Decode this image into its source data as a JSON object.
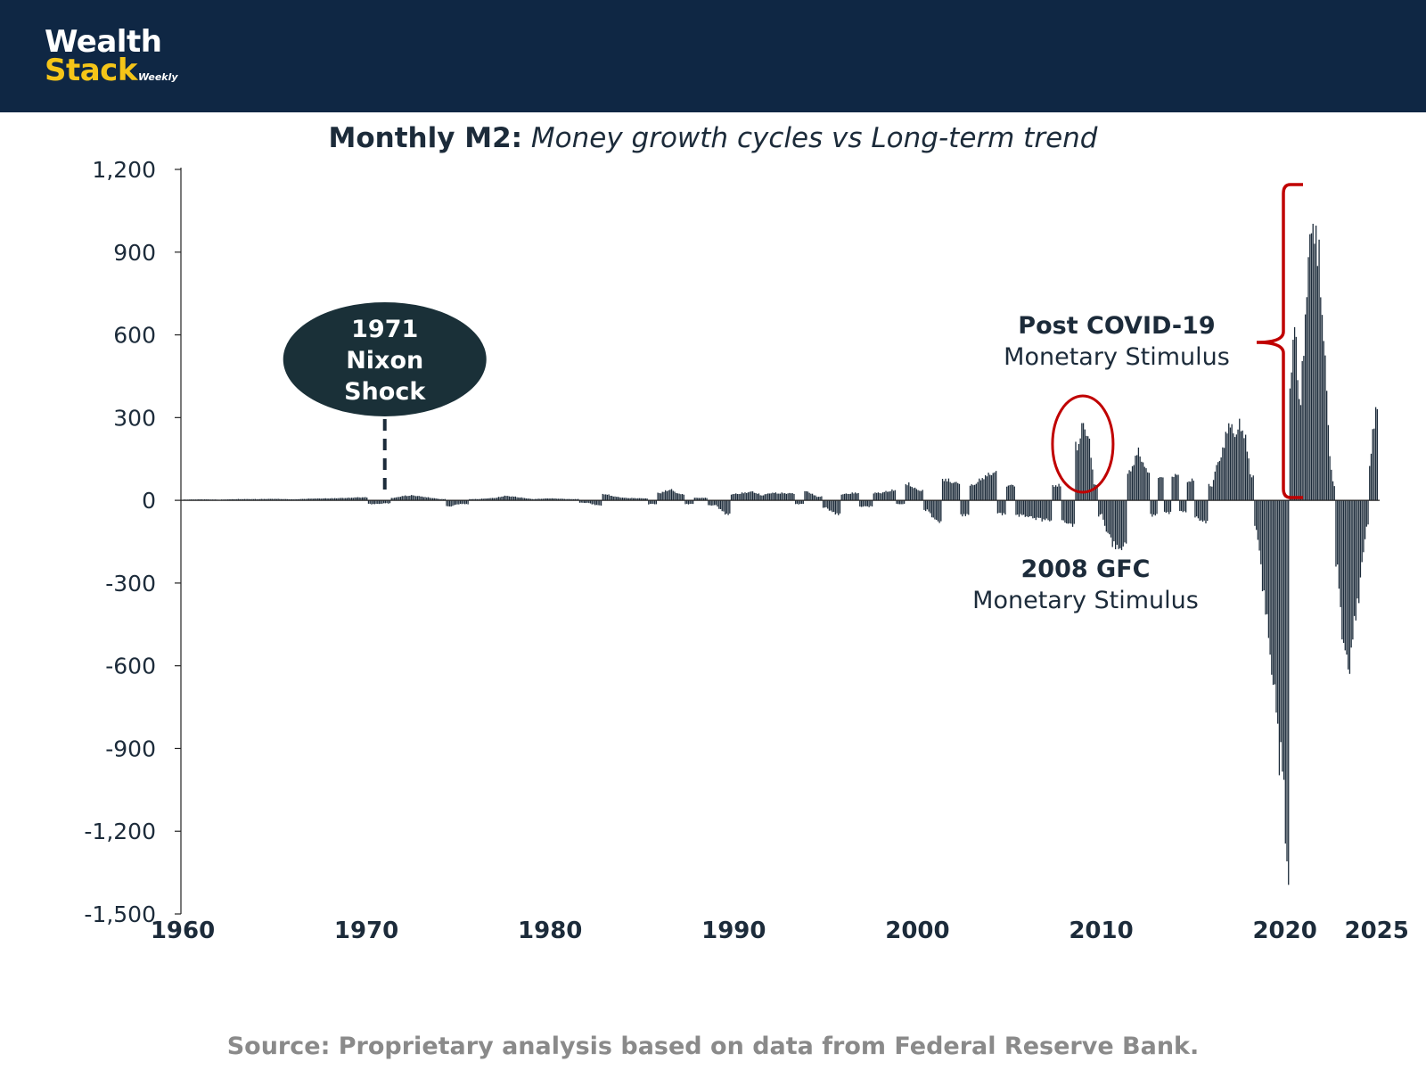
{
  "brand": {
    "line1": "Wealth",
    "line2": "Stack",
    "sub": "Weekly"
  },
  "source": "Source: Proprietary analysis based on data from Federal Reserve Bank.",
  "colors": {
    "header": "#0f2744",
    "bar": "#1c2b3a",
    "annotation_red": "#c00000",
    "logo_yellow": "#f5c518",
    "source_grey": "#8a8a8a"
  },
  "chart_data": {
    "type": "bar",
    "title_bold": "Monthly M2:",
    "title_italic": "Money growth cycles vs Long-term trend",
    "xlabel": "",
    "ylabel": "",
    "xlim": [
      1960,
      2025.5
    ],
    "ylim": [
      -1500,
      1200
    ],
    "yticks": [
      1200,
      900,
      600,
      300,
      0,
      -300,
      -600,
      -900,
      -1200,
      -1500
    ],
    "ytick_labels": [
      "1,200",
      "900",
      "600",
      "300",
      "0",
      "-300",
      "-600",
      "-900",
      "-1,200",
      "-1,500"
    ],
    "xticks": [
      1960,
      1970,
      1980,
      1990,
      2000,
      2010,
      2020,
      2025
    ],
    "xtick_labels": [
      "1960",
      "1970",
      "1980",
      "1990",
      "2000",
      "2010",
      "2020",
      "2025"
    ],
    "grid": false,
    "series": [
      {
        "name": "Monthly M2 deviation",
        "points": [
          [
            1960.0,
            3
          ],
          [
            1961.0,
            4
          ],
          [
            1962.0,
            3
          ],
          [
            1963.0,
            5
          ],
          [
            1964.0,
            5
          ],
          [
            1965.0,
            6
          ],
          [
            1966.0,
            4
          ],
          [
            1967.0,
            7
          ],
          [
            1968.0,
            8
          ],
          [
            1969.0,
            10
          ],
          [
            1969.5,
            12
          ],
          [
            1970.5,
            -15
          ],
          [
            1971.0,
            -12
          ],
          [
            1971.5,
            10
          ],
          [
            1972.0,
            18
          ],
          [
            1972.5,
            20
          ],
          [
            1973.0,
            15
          ],
          [
            1974.0,
            5
          ],
          [
            1974.5,
            -25
          ],
          [
            1975.0,
            -15
          ],
          [
            1976.0,
            5
          ],
          [
            1977.0,
            10
          ],
          [
            1977.5,
            18
          ],
          [
            1978.0,
            15
          ],
          [
            1979.0,
            5
          ],
          [
            1980.0,
            8
          ],
          [
            1981.0,
            5
          ],
          [
            1982.0,
            -10
          ],
          [
            1982.5,
            -20
          ],
          [
            1983.0,
            25
          ],
          [
            1983.5,
            15
          ],
          [
            1984.0,
            10
          ],
          [
            1985.0,
            8
          ],
          [
            1985.5,
            -15
          ],
          [
            1986.0,
            30
          ],
          [
            1986.5,
            45
          ],
          [
            1987.0,
            25
          ],
          [
            1987.5,
            -15
          ],
          [
            1988.0,
            10
          ],
          [
            1989.0,
            -20
          ],
          [
            1989.5,
            -55
          ],
          [
            1990.0,
            25
          ],
          [
            1990.5,
            30
          ],
          [
            1991.0,
            35
          ],
          [
            1991.5,
            20
          ],
          [
            1992.0,
            30
          ],
          [
            1993.0,
            28
          ],
          [
            1993.5,
            -15
          ],
          [
            1994.0,
            35
          ],
          [
            1994.5,
            15
          ],
          [
            1995.0,
            -30
          ],
          [
            1995.5,
            -55
          ],
          [
            1996.0,
            25
          ],
          [
            1996.5,
            30
          ],
          [
            1997.0,
            -25
          ],
          [
            1998.0,
            30
          ],
          [
            1998.5,
            40
          ],
          [
            1999.0,
            -15
          ],
          [
            1999.5,
            65
          ],
          [
            2000.0,
            40
          ],
          [
            2000.5,
            -40
          ],
          [
            2001.0,
            -85
          ],
          [
            2001.5,
            85
          ],
          [
            2002.0,
            70
          ],
          [
            2002.5,
            -60
          ],
          [
            2003.0,
            60
          ],
          [
            2003.5,
            90
          ],
          [
            2004.0,
            110
          ],
          [
            2004.5,
            -55
          ],
          [
            2005.0,
            60
          ],
          [
            2005.5,
            -60
          ],
          [
            2006.0,
            -65
          ],
          [
            2006.5,
            -75
          ],
          [
            2007.0,
            -80
          ],
          [
            2007.5,
            60
          ],
          [
            2008.0,
            -85
          ],
          [
            2008.3,
            -100
          ],
          [
            2008.7,
            220
          ],
          [
            2009.0,
            310
          ],
          [
            2009.3,
            250
          ],
          [
            2009.6,
            60
          ],
          [
            2010.0,
            -60
          ],
          [
            2010.3,
            -130
          ],
          [
            2010.6,
            -175
          ],
          [
            2010.9,
            -200
          ],
          [
            2011.2,
            -180
          ],
          [
            2011.5,
            110
          ],
          [
            2012.0,
            200
          ],
          [
            2012.4,
            120
          ],
          [
            2012.8,
            -60
          ],
          [
            2013.2,
            90
          ],
          [
            2013.6,
            -50
          ],
          [
            2014.0,
            100
          ],
          [
            2014.4,
            -45
          ],
          [
            2014.8,
            80
          ],
          [
            2015.2,
            -70
          ],
          [
            2015.6,
            -90
          ],
          [
            2016.0,
            60
          ],
          [
            2016.3,
            150
          ],
          [
            2016.6,
            200
          ],
          [
            2016.9,
            320
          ],
          [
            2017.2,
            260
          ],
          [
            2017.5,
            300
          ],
          [
            2017.8,
            270
          ],
          [
            2018.1,
            100
          ],
          [
            2018.4,
            -100
          ],
          [
            2018.7,
            -300
          ],
          [
            2019.0,
            -500
          ],
          [
            2019.3,
            -700
          ],
          [
            2019.6,
            -950
          ],
          [
            2019.8,
            -1100
          ],
          [
            2020.0,
            -1300
          ],
          [
            2020.1,
            -1480
          ],
          [
            2020.25,
            470
          ],
          [
            2020.5,
            700
          ],
          [
            2020.8,
            380
          ],
          [
            2021.0,
            600
          ],
          [
            2021.2,
            950
          ],
          [
            2021.4,
            1050
          ],
          [
            2021.6,
            1140
          ],
          [
            2021.8,
            980
          ],
          [
            2022.0,
            800
          ],
          [
            2022.2,
            500
          ],
          [
            2022.4,
            200
          ],
          [
            2022.6,
            60
          ],
          [
            2022.8,
            -250
          ],
          [
            2023.0,
            -450
          ],
          [
            2023.2,
            -600
          ],
          [
            2023.4,
            -690
          ],
          [
            2023.6,
            -600
          ],
          [
            2023.8,
            -480
          ],
          [
            2024.0,
            -380
          ],
          [
            2024.2,
            -250
          ],
          [
            2024.4,
            -100
          ],
          [
            2024.6,
            150
          ],
          [
            2024.8,
            300
          ],
          [
            2025.0,
            400
          ]
        ]
      }
    ],
    "annotations": {
      "nixon": {
        "year": 1971,
        "line1": "1971",
        "line2": "Nixon",
        "line3": "Shock"
      },
      "gfc": {
        "year": 2009,
        "bold": "2008 GFC",
        "sub": "Monetary Stimulus"
      },
      "covid": {
        "bold": "Post COVID-19",
        "sub": "Monetary Stimulus"
      }
    }
  }
}
